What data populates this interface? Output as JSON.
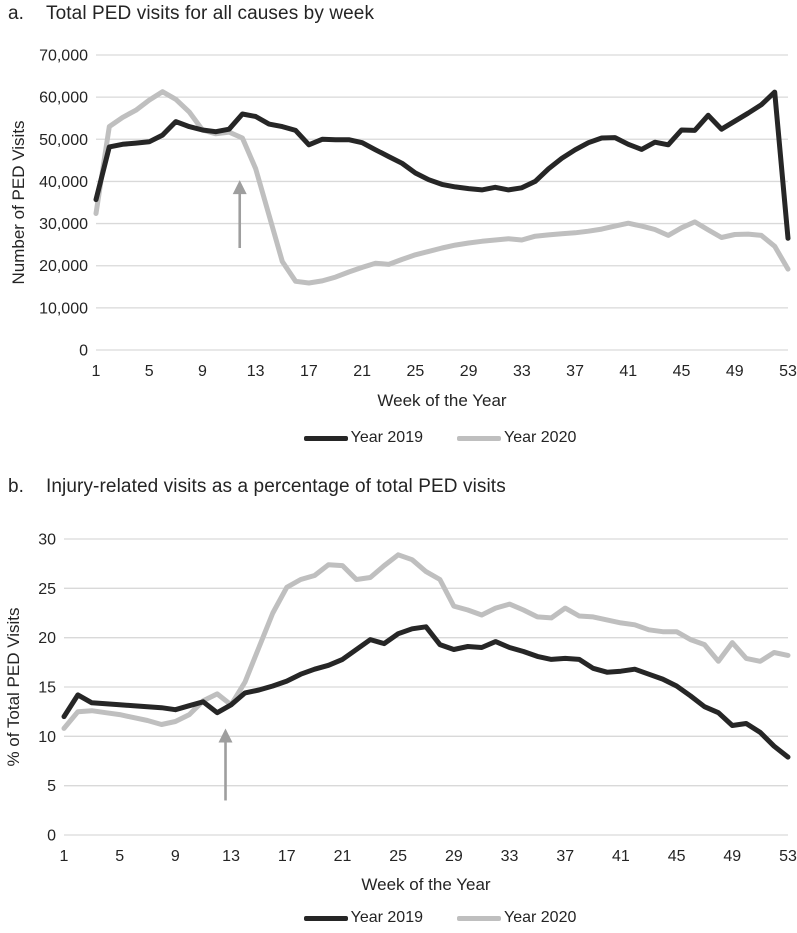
{
  "chart_data": [
    {
      "type": "line",
      "panel_label": "a.",
      "title": "Total PED visits for all causes by week",
      "xlabel": "Week of the Year",
      "ylabel": "Number of PED Visits",
      "x": [
        1,
        2,
        3,
        4,
        5,
        6,
        7,
        8,
        9,
        10,
        11,
        12,
        13,
        14,
        15,
        16,
        17,
        18,
        19,
        20,
        21,
        22,
        23,
        24,
        25,
        26,
        27,
        28,
        29,
        30,
        31,
        32,
        33,
        34,
        35,
        36,
        37,
        38,
        39,
        40,
        41,
        42,
        43,
        44,
        45,
        46,
        47,
        48,
        49,
        50,
        51,
        52,
        53
      ],
      "xticks": [
        1,
        5,
        9,
        13,
        17,
        21,
        25,
        29,
        33,
        37,
        41,
        45,
        49,
        53
      ],
      "ylim": [
        0,
        70000
      ],
      "yticks": [
        0,
        10000,
        20000,
        30000,
        40000,
        50000,
        60000,
        70000
      ],
      "ytick_labels": [
        "0",
        "10,000",
        "20,000",
        "30,000",
        "40,000",
        "50,000",
        "60,000",
        "70,000"
      ],
      "grid": true,
      "legend_position": "bottom",
      "series": [
        {
          "name": "Year 2019",
          "color": "#262626",
          "values": [
            35700,
            48200,
            48800,
            49100,
            49400,
            51000,
            54200,
            53000,
            52200,
            51800,
            52400,
            56000,
            55400,
            53600,
            53000,
            52100,
            48700,
            50000,
            49900,
            49900,
            49200,
            47500,
            45900,
            44300,
            42000,
            40400,
            39300,
            38700,
            38300,
            38000,
            38600,
            38000,
            38500,
            40000,
            43000,
            45500,
            47500,
            49200,
            50300,
            50400,
            48800,
            47600,
            49300,
            48700,
            52200,
            52100,
            55700,
            52400,
            54300,
            56200,
            58200,
            61200,
            26500
          ]
        },
        {
          "name": "Year 2020",
          "color": "#bfbfbf",
          "values": [
            32400,
            53000,
            55200,
            56900,
            59300,
            61300,
            59500,
            56500,
            52200,
            51300,
            51700,
            50300,
            43000,
            32000,
            21000,
            16300,
            15900,
            16400,
            17300,
            18500,
            19600,
            20600,
            20300,
            21500,
            22600,
            23400,
            24200,
            24900,
            25400,
            25800,
            26100,
            26400,
            26100,
            27000,
            27300,
            27600,
            27800,
            28200,
            28700,
            29400,
            30100,
            29400,
            28600,
            27200,
            29000,
            30400,
            28500,
            26700,
            27400,
            27500,
            27200,
            24600,
            19200
          ]
        }
      ],
      "annotation_arrow": {
        "x_week": 11.8,
        "y_from": 24200,
        "y_to": 40300,
        "color": "#9e9e9e"
      }
    },
    {
      "type": "line",
      "panel_label": "b.",
      "title": "Injury-related visits as a percentage of total PED visits",
      "xlabel": "Week of the Year",
      "ylabel": "% of Total PED Visits",
      "x": [
        1,
        2,
        3,
        4,
        5,
        6,
        7,
        8,
        9,
        10,
        11,
        12,
        13,
        14,
        15,
        16,
        17,
        18,
        19,
        20,
        21,
        22,
        23,
        24,
        25,
        26,
        27,
        28,
        29,
        30,
        31,
        32,
        33,
        34,
        35,
        36,
        37,
        38,
        39,
        40,
        41,
        42,
        43,
        44,
        45,
        46,
        47,
        48,
        49,
        50,
        51,
        52,
        53
      ],
      "xticks": [
        1,
        5,
        9,
        13,
        17,
        21,
        25,
        29,
        33,
        37,
        41,
        45,
        49,
        53
      ],
      "ylim": [
        0,
        30
      ],
      "yticks": [
        0,
        5,
        10,
        15,
        20,
        25,
        30
      ],
      "ytick_labels": [
        "0",
        "5",
        "10",
        "15",
        "20",
        "25",
        "30"
      ],
      "grid": true,
      "legend_position": "bottom",
      "series": [
        {
          "name": "Year 2019",
          "color": "#262626",
          "values": [
            12.0,
            14.2,
            13.4,
            13.3,
            13.2,
            13.1,
            13.0,
            12.9,
            12.7,
            13.1,
            13.5,
            12.4,
            13.2,
            14.4,
            14.7,
            15.1,
            15.6,
            16.3,
            16.8,
            17.2,
            17.8,
            18.8,
            19.8,
            19.4,
            20.4,
            20.9,
            21.1,
            19.3,
            18.8,
            19.1,
            19.0,
            19.6,
            19.0,
            18.6,
            18.1,
            17.8,
            17.9,
            17.8,
            16.9,
            16.5,
            16.6,
            16.8,
            16.3,
            15.8,
            15.1,
            14.1,
            13.0,
            12.4,
            11.1,
            11.3,
            10.4,
            9.0,
            7.9
          ]
        },
        {
          "name": "Year 2020",
          "color": "#bfbfbf",
          "values": [
            10.8,
            12.5,
            12.6,
            12.4,
            12.2,
            11.9,
            11.6,
            11.2,
            11.5,
            12.2,
            13.6,
            14.3,
            13.2,
            15.5,
            19.0,
            22.5,
            25.1,
            25.9,
            26.3,
            27.4,
            27.3,
            25.9,
            26.1,
            27.3,
            28.4,
            27.9,
            26.7,
            25.9,
            23.2,
            22.8,
            22.3,
            23.0,
            23.4,
            22.8,
            22.1,
            22.0,
            23.0,
            22.2,
            22.1,
            21.8,
            21.5,
            21.3,
            20.8,
            20.6,
            20.6,
            19.8,
            19.3,
            17.6,
            19.5,
            17.9,
            17.6,
            18.5,
            18.2
          ]
        }
      ],
      "annotation_arrow": {
        "x_week": 12.6,
        "y_from": 3.5,
        "y_to": 10.8,
        "color": "#9e9e9e"
      }
    }
  ],
  "styles": {
    "gridline_color": "#d9d9d9",
    "text_color": "#242424",
    "line_width": 5
  }
}
